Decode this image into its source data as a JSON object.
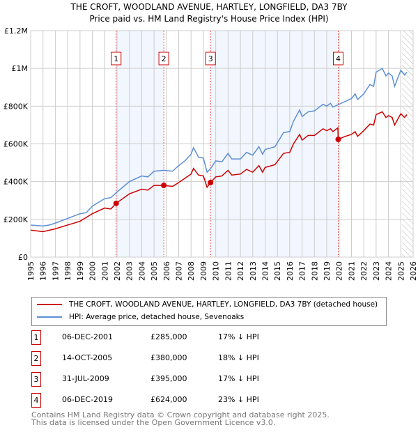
{
  "chart_data": {
    "type": "line",
    "title": "THE CROFT, WOODLAND AVENUE, HARTLEY, LONGFIELD, DA3 7BY",
    "subtitle": "Price paid vs. HM Land Registry's House Price Index (HPI)",
    "xlim": [
      1995,
      2026
    ],
    "ylim": [
      0,
      1200000
    ],
    "x_ticks": [
      "1995",
      "1996",
      "1997",
      "1998",
      "1999",
      "2000",
      "2001",
      "2002",
      "2003",
      "2004",
      "2005",
      "2006",
      "2007",
      "2008",
      "2009",
      "2010",
      "2011",
      "2012",
      "2013",
      "2014",
      "2015",
      "2016",
      "2017",
      "2018",
      "2019",
      "2020",
      "2021",
      "2022",
      "2023",
      "2024",
      "2025",
      "2026"
    ],
    "y_ticks": [
      {
        "v": 0,
        "label": "£0"
      },
      {
        "v": 200000,
        "label": "£200K"
      },
      {
        "v": 400000,
        "label": "£400K"
      },
      {
        "v": 600000,
        "label": "£600K"
      },
      {
        "v": 800000,
        "label": "£800K"
      },
      {
        "v": 1000000,
        "label": "£1M"
      },
      {
        "v": 1200000,
        "label": "£1.2M"
      }
    ],
    "grid": true,
    "shaded_ranges": [
      [
        2001.93,
        2005.79
      ],
      [
        2009.58,
        2019.93
      ]
    ],
    "future_hatch_from": 2025.1,
    "series": [
      {
        "name": "THE CROFT, WOODLAND AVENUE, HARTLEY, LONGFIELD, DA3 7BY (detached house)",
        "color": "#cc0000",
        "x": [
          1995,
          1996,
          1997,
          1998,
          1999,
          2000,
          2001,
          2001.5,
          2001.93,
          2003,
          2004,
          2004.5,
          2005,
          2005.79,
          2006.5,
          2007,
          2008,
          2008.2,
          2008.6,
          2009,
          2009.3,
          2009.58,
          2010,
          2010.5,
          2011,
          2011.3,
          2012,
          2012.5,
          2013,
          2013.5,
          2013.8,
          2014,
          2014.8,
          2015.5,
          2016,
          2016.3,
          2016.8,
          2017,
          2017.5,
          2018,
          2018.7,
          2019,
          2019.3,
          2019.5,
          2019.9,
          2019.93,
          2020.5,
          2021,
          2021.3,
          2021.5,
          2022,
          2022.5,
          2022.8,
          2023,
          2023.5,
          2023.8,
          2024,
          2024.3,
          2024.5,
          2025,
          2025.3,
          2025.5
        ],
        "y": [
          143000,
          135000,
          150000,
          170000,
          190000,
          230000,
          260000,
          255000,
          285000,
          335000,
          360000,
          355000,
          380000,
          380000,
          375000,
          395000,
          440000,
          470000,
          435000,
          430000,
          370000,
          395000,
          425000,
          430000,
          460000,
          435000,
          440000,
          465000,
          450000,
          485000,
          450000,
          475000,
          490000,
          550000,
          555000,
          600000,
          650000,
          620000,
          645000,
          645000,
          680000,
          670000,
          680000,
          665000,
          685000,
          624000,
          640000,
          650000,
          665000,
          640000,
          670000,
          705000,
          700000,
          755000,
          770000,
          740000,
          750000,
          740000,
          700000,
          760000,
          740000,
          755000
        ]
      },
      {
        "name": "HPI: Average price, detached house, Sevenoaks",
        "color": "#5b8fd4",
        "x": [
          1995,
          1996,
          1996.5,
          1997,
          1998,
          1999,
          1999.5,
          2000,
          2001,
          2001.5,
          2002,
          2003,
          2004,
          2004.5,
          2005,
          2005.8,
          2006.5,
          2007,
          2007.5,
          2008,
          2008.2,
          2008.6,
          2009,
          2009.3,
          2009.6,
          2010,
          2010.5,
          2011,
          2011.3,
          2012,
          2012.5,
          2013,
          2013.5,
          2013.8,
          2014,
          2014.8,
          2015.5,
          2016,
          2016.3,
          2016.8,
          2017,
          2017.5,
          2018,
          2018.7,
          2019,
          2019.3,
          2019.5,
          2020,
          2020.5,
          2021,
          2021.3,
          2021.5,
          2022,
          2022.5,
          2022.8,
          2023,
          2023.5,
          2023.8,
          2024,
          2024.3,
          2024.5,
          2025,
          2025.3,
          2025.5
        ],
        "y": [
          170000,
          165000,
          170000,
          180000,
          205000,
          230000,
          235000,
          270000,
          310000,
          315000,
          345000,
          400000,
          430000,
          425000,
          455000,
          460000,
          455000,
          485000,
          510000,
          545000,
          580000,
          530000,
          525000,
          450000,
          470000,
          510000,
          505000,
          550000,
          520000,
          520000,
          555000,
          540000,
          585000,
          545000,
          570000,
          585000,
          660000,
          665000,
          720000,
          780000,
          745000,
          770000,
          775000,
          810000,
          800000,
          815000,
          795000,
          810000,
          825000,
          840000,
          865000,
          835000,
          865000,
          915000,
          905000,
          980000,
          1000000,
          960000,
          975000,
          960000,
          905000,
          990000,
          965000,
          980000
        ]
      }
    ],
    "sales": [
      {
        "n": "1",
        "x": 2001.93,
        "y": 285000,
        "date": "06-DEC-2001",
        "price": "£285,000",
        "hpi": "17% ↓ HPI"
      },
      {
        "n": "2",
        "x": 2005.79,
        "y": 380000,
        "date": "14-OCT-2005",
        "price": "£380,000",
        "hpi": "18% ↓ HPI"
      },
      {
        "n": "3",
        "x": 2009.58,
        "y": 395000,
        "date": "31-JUL-2009",
        "price": "£395,000",
        "hpi": "17% ↓ HPI"
      },
      {
        "n": "4",
        "x": 2019.93,
        "y": 624000,
        "date": "06-DEC-2019",
        "price": "£624,000",
        "hpi": "23% ↓ HPI"
      }
    ]
  },
  "footer": {
    "line1": "Contains HM Land Registry data © Crown copyright and database right 2025.",
    "line2": "This data is licensed under the Open Government Licence v3.0."
  }
}
